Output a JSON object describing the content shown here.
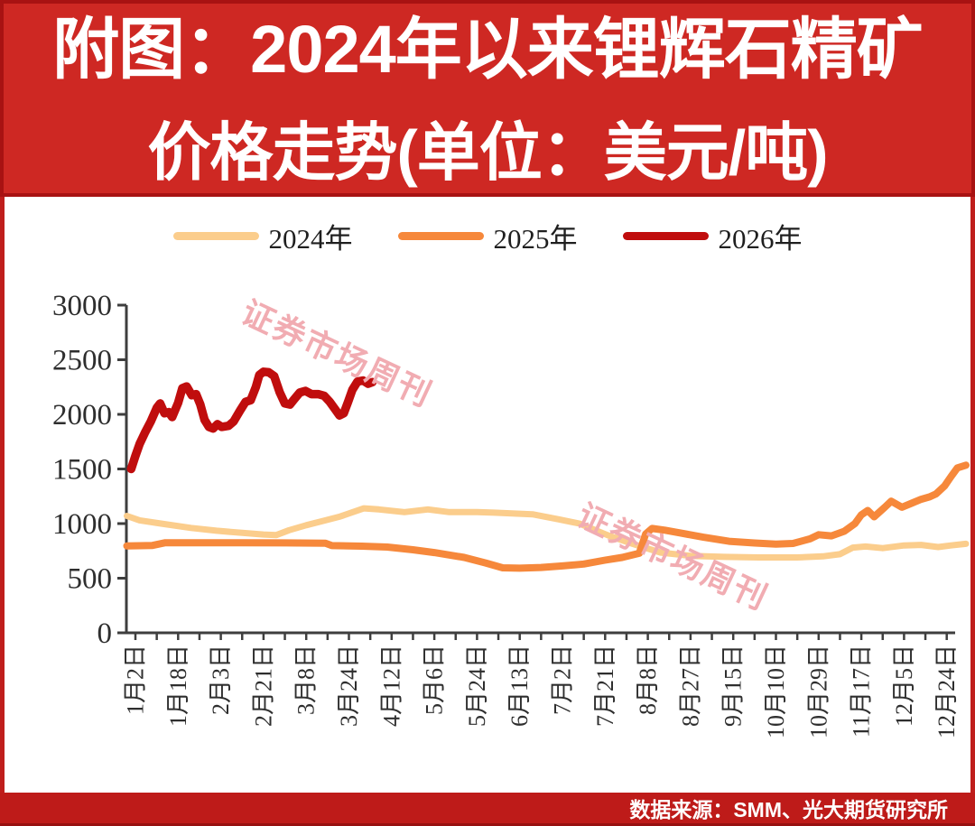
{
  "banner": {
    "title_line1": "附图：2024年以来锂辉石精矿",
    "title_line2": "价格走势(单位：美元/吨)"
  },
  "legend": {
    "items": [
      {
        "label": "2024年"
      },
      {
        "label": "2025年"
      },
      {
        "label": "2026年"
      }
    ]
  },
  "watermark": {
    "text": "证券市场周刊"
  },
  "footer": {
    "source": "数据来源：SMM、光大期货研究所"
  },
  "colors": {
    "banner_red": "#CE2823",
    "footer_red": "#BE1B19",
    "border_dark_red": "#A81212",
    "series_2024": "#FBCD8C",
    "series_2025": "#F6883B",
    "series_2026": "#C00D0D",
    "watermark_pink": "#F1ACB2",
    "axis_line": "#3E3E3E",
    "axis_text": "#2E2E2E"
  },
  "chart_data": {
    "type": "line",
    "title": "2024年以来锂辉石精矿价格走势",
    "unit": "美元/吨",
    "ylim": [
      0,
      3000
    ],
    "ytick_interval": 500,
    "yticks": [
      0,
      500,
      1000,
      1500,
      2000,
      2500,
      3000
    ],
    "ytick_labels": [
      "0",
      "500",
      "1000",
      "1500",
      "2000",
      "2500",
      "3000"
    ],
    "x_unit": "label_index",
    "x_labels": [
      "1月2日",
      "1月18日",
      "2月3日",
      "2月21日",
      "3月8日",
      "3月24日",
      "4月12日",
      "5月6日",
      "5月24日",
      "6月13日",
      "7月2日",
      "7月21日",
      "8月8日",
      "8月27日",
      "9月15日",
      "10月10日",
      "10月29日",
      "11月17日",
      "12月5日",
      "12月24日"
    ],
    "grid": false,
    "legend_position": "top",
    "series": [
      {
        "name": "2024年",
        "color": "#FBCD8C",
        "width": 7,
        "points": [
          [
            -0.2,
            1070
          ],
          [
            0.1,
            1030
          ],
          [
            0.6,
            1000
          ],
          [
            1.3,
            960
          ],
          [
            1.9,
            935
          ],
          [
            2.5,
            915
          ],
          [
            3.0,
            900
          ],
          [
            3.3,
            895
          ],
          [
            3.6,
            940
          ],
          [
            4.0,
            985
          ],
          [
            4.4,
            1025
          ],
          [
            4.8,
            1065
          ],
          [
            5.35,
            1140
          ],
          [
            5.7,
            1130
          ],
          [
            6.3,
            1105
          ],
          [
            6.85,
            1130
          ],
          [
            7.35,
            1105
          ],
          [
            8.0,
            1105
          ],
          [
            8.4,
            1100
          ],
          [
            9.3,
            1085
          ],
          [
            9.9,
            1040
          ],
          [
            10.4,
            1000
          ],
          [
            11.05,
            895
          ],
          [
            11.6,
            820
          ],
          [
            12.3,
            735
          ],
          [
            13.0,
            705
          ],
          [
            13.8,
            695
          ],
          [
            14.6,
            690
          ],
          [
            15.5,
            690
          ],
          [
            16.1,
            700
          ],
          [
            16.5,
            720
          ],
          [
            16.8,
            780
          ],
          [
            17.1,
            790
          ],
          [
            17.5,
            775
          ],
          [
            18.0,
            800
          ],
          [
            18.4,
            805
          ],
          [
            18.8,
            785
          ],
          [
            19.1,
            800
          ],
          [
            19.45,
            815
          ]
        ]
      },
      {
        "name": "2025年",
        "color": "#F6883B",
        "width": 8,
        "points": [
          [
            -0.2,
            795
          ],
          [
            0.4,
            800
          ],
          [
            0.7,
            825
          ],
          [
            1.5,
            825
          ],
          [
            2.5,
            825
          ],
          [
            3.5,
            823
          ],
          [
            4.45,
            820
          ],
          [
            4.6,
            798
          ],
          [
            5.3,
            793
          ],
          [
            5.9,
            785
          ],
          [
            6.5,
            760
          ],
          [
            7.0,
            735
          ],
          [
            7.7,
            690
          ],
          [
            8.2,
            640
          ],
          [
            8.6,
            595
          ],
          [
            9.0,
            592
          ],
          [
            9.5,
            598
          ],
          [
            10.0,
            612
          ],
          [
            10.5,
            630
          ],
          [
            11.0,
            665
          ],
          [
            11.4,
            690
          ],
          [
            11.8,
            728
          ],
          [
            11.95,
            905
          ],
          [
            12.1,
            955
          ],
          [
            12.4,
            940
          ],
          [
            12.75,
            915
          ],
          [
            13.3,
            875
          ],
          [
            13.9,
            838
          ],
          [
            14.5,
            822
          ],
          [
            15.0,
            812
          ],
          [
            15.4,
            818
          ],
          [
            15.8,
            860
          ],
          [
            16.0,
            898
          ],
          [
            16.3,
            888
          ],
          [
            16.6,
            930
          ],
          [
            16.85,
            1000
          ],
          [
            17.0,
            1080
          ],
          [
            17.15,
            1120
          ],
          [
            17.3,
            1062
          ],
          [
            17.55,
            1150
          ],
          [
            17.7,
            1205
          ],
          [
            17.95,
            1150
          ],
          [
            18.2,
            1190
          ],
          [
            18.4,
            1222
          ],
          [
            18.6,
            1245
          ],
          [
            18.75,
            1272
          ],
          [
            18.95,
            1345
          ],
          [
            19.1,
            1430
          ],
          [
            19.25,
            1510
          ],
          [
            19.45,
            1535
          ]
        ]
      },
      {
        "name": "2026年",
        "color": "#C00D0D",
        "width": 9.5,
        "points": [
          [
            -0.1,
            1500
          ],
          [
            0.0,
            1620
          ],
          [
            0.1,
            1730
          ],
          [
            0.22,
            1830
          ],
          [
            0.36,
            1935
          ],
          [
            0.5,
            2060
          ],
          [
            0.58,
            2100
          ],
          [
            0.68,
            2010
          ],
          [
            0.78,
            2020
          ],
          [
            0.86,
            1975
          ],
          [
            1.0,
            2105
          ],
          [
            1.1,
            2240
          ],
          [
            1.2,
            2255
          ],
          [
            1.32,
            2175
          ],
          [
            1.42,
            2185
          ],
          [
            1.52,
            2090
          ],
          [
            1.62,
            1950
          ],
          [
            1.72,
            1885
          ],
          [
            1.82,
            1870
          ],
          [
            1.92,
            1910
          ],
          [
            2.02,
            1885
          ],
          [
            2.18,
            1895
          ],
          [
            2.3,
            1935
          ],
          [
            2.45,
            2035
          ],
          [
            2.58,
            2115
          ],
          [
            2.7,
            2130
          ],
          [
            2.82,
            2250
          ],
          [
            2.9,
            2360
          ],
          [
            3.0,
            2390
          ],
          [
            3.12,
            2385
          ],
          [
            3.25,
            2350
          ],
          [
            3.38,
            2200
          ],
          [
            3.5,
            2100
          ],
          [
            3.62,
            2090
          ],
          [
            3.72,
            2140
          ],
          [
            3.85,
            2200
          ],
          [
            3.98,
            2215
          ],
          [
            4.12,
            2185
          ],
          [
            4.28,
            2185
          ],
          [
            4.42,
            2170
          ],
          [
            4.55,
            2115
          ],
          [
            4.67,
            2050
          ],
          [
            4.78,
            1990
          ],
          [
            4.88,
            2010
          ],
          [
            4.98,
            2115
          ],
          [
            5.08,
            2225
          ],
          [
            5.2,
            2300
          ],
          [
            5.33,
            2310
          ],
          [
            5.45,
            2280
          ],
          [
            5.55,
            2295
          ]
        ]
      }
    ]
  }
}
